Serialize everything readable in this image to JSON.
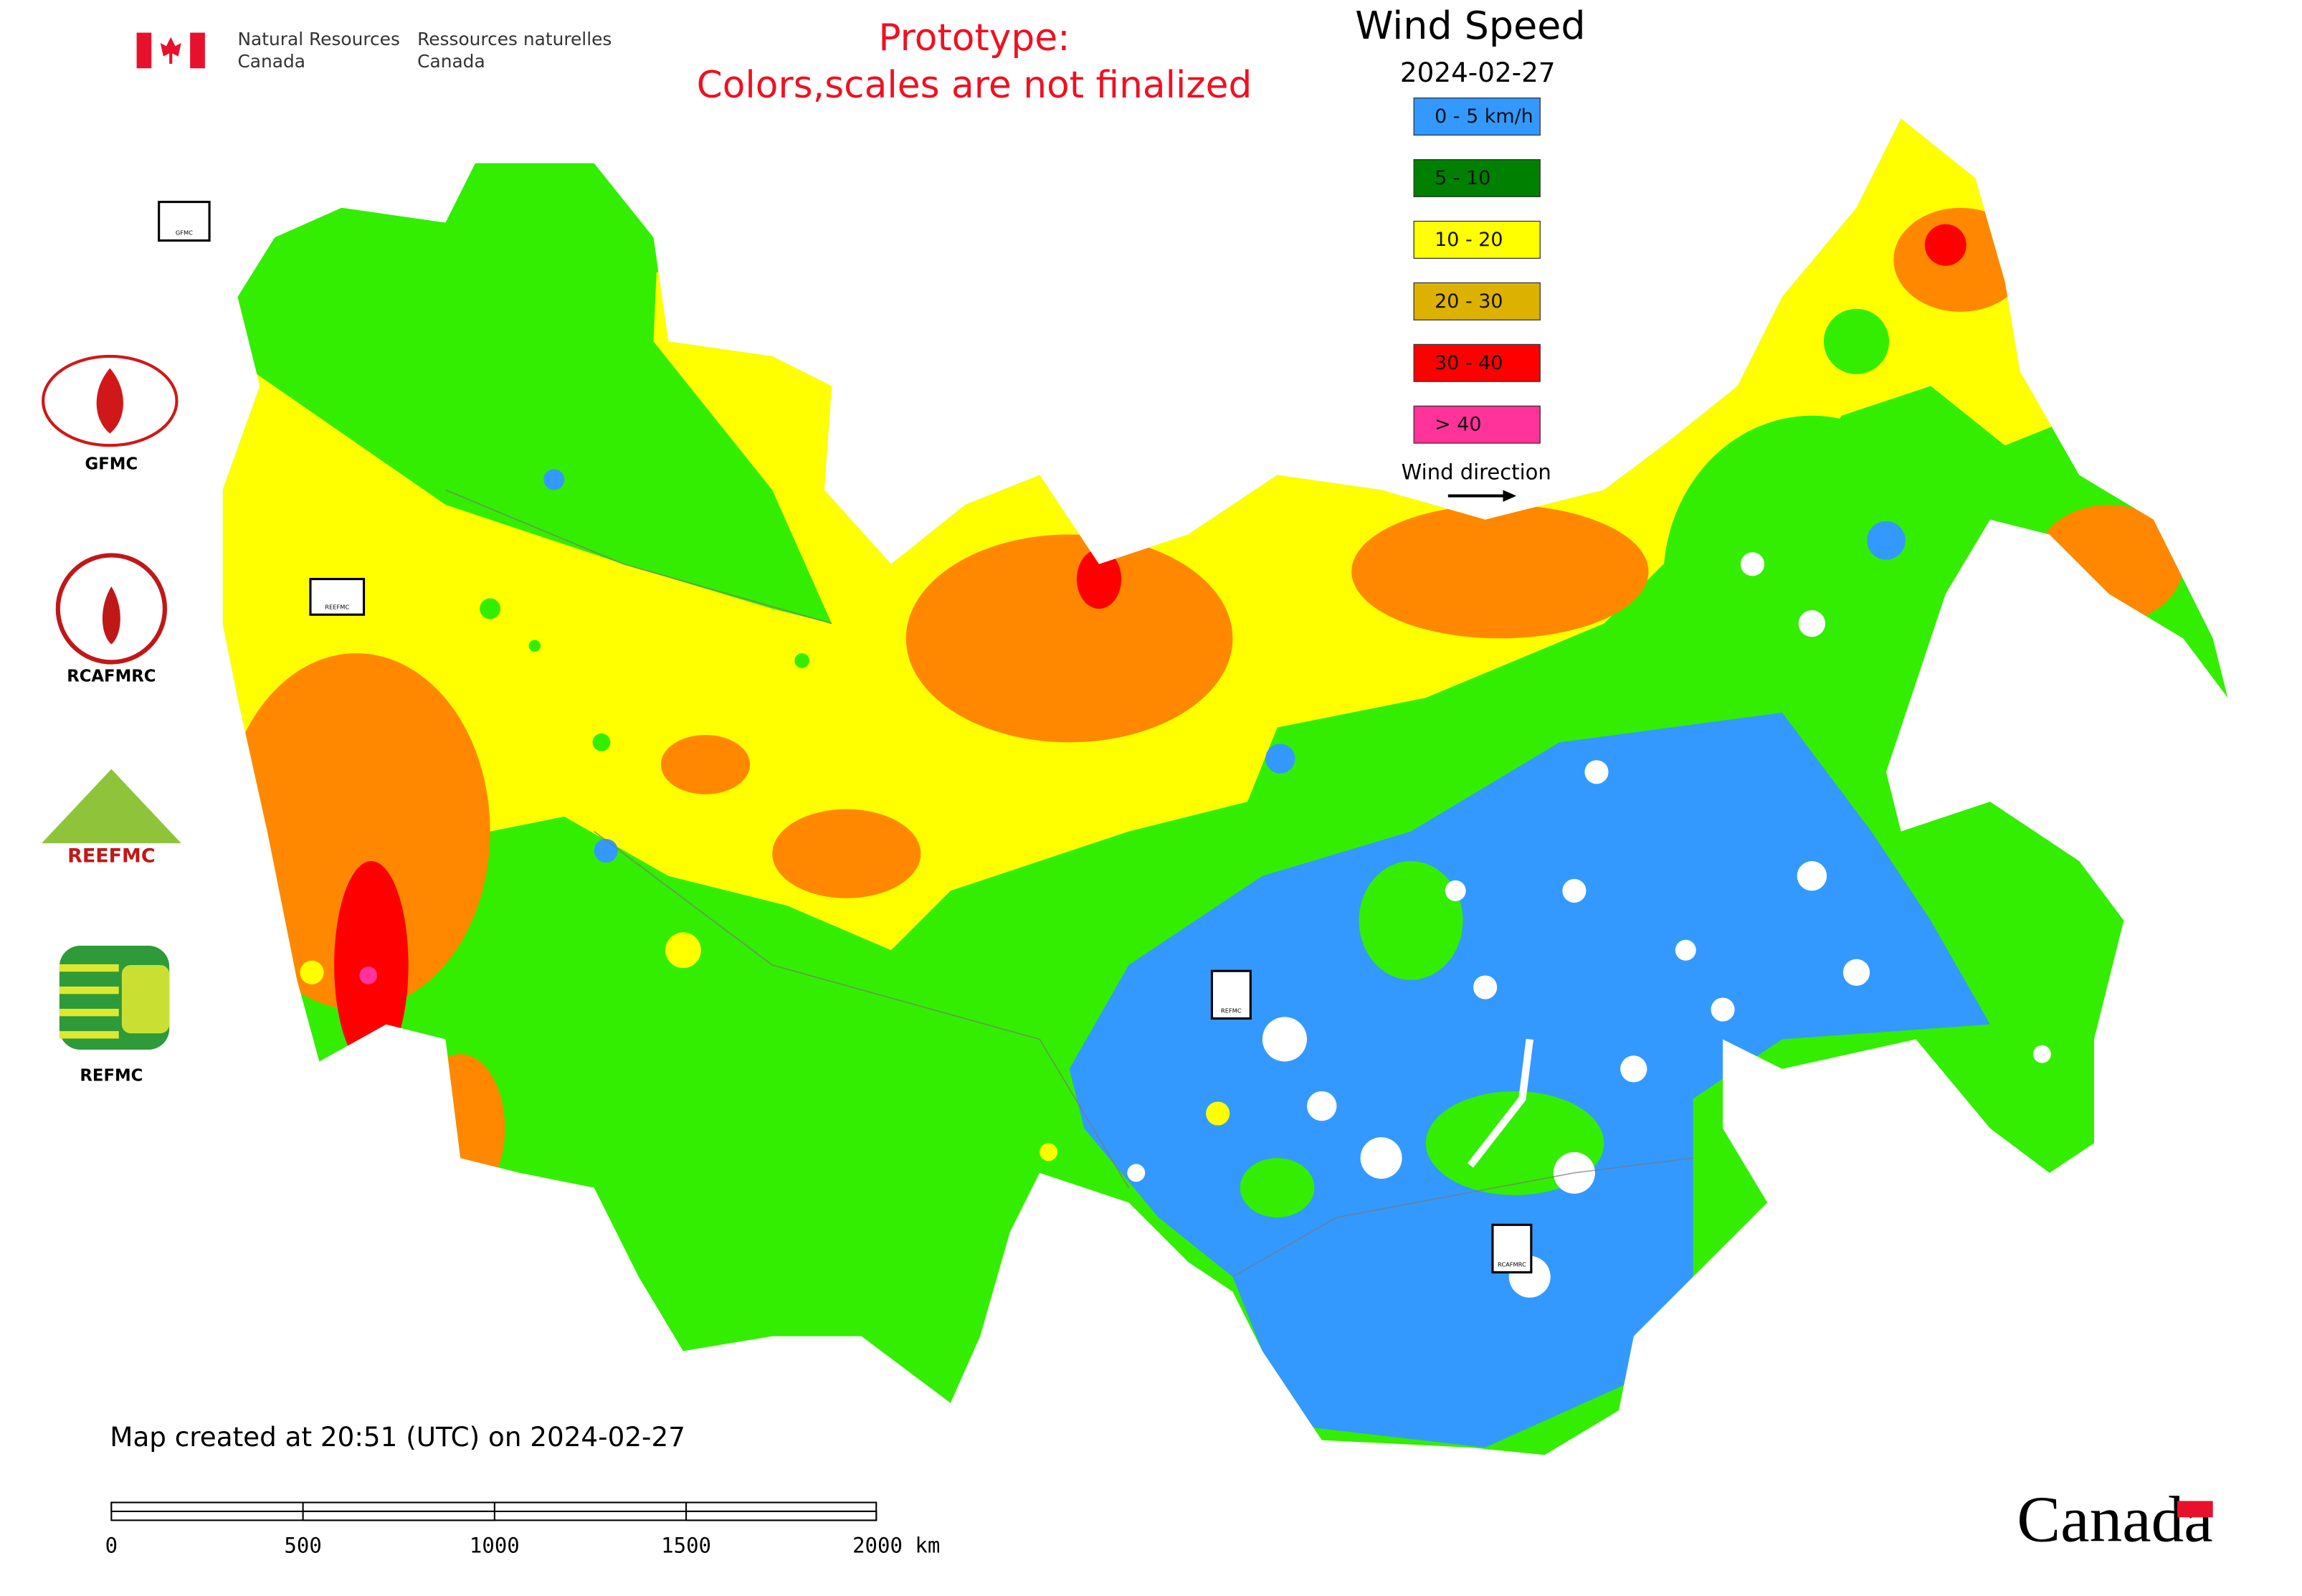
{
  "header": {
    "agency_en": [
      "Natural Resources",
      "Canada"
    ],
    "agency_fr": [
      "Ressources naturelles",
      "Canada"
    ]
  },
  "notice": [
    "Prototype:",
    "Colors,scales are not finalized"
  ],
  "legend": {
    "title": "Wind Speed",
    "date": "2024-02-27",
    "items": [
      {
        "label": "0 - 5 km/h",
        "color": "#3399ff"
      },
      {
        "label": "5 - 10",
        "color": "#008000"
      },
      {
        "label": "10 - 20",
        "color": "#ffff00"
      },
      {
        "label": "20 - 30",
        "color": "#ddb100"
      },
      {
        "label": "30 - 40",
        "color": "#ff0000"
      },
      {
        "label": "> 40",
        "color": "#ff3399"
      }
    ],
    "wind_direction": "Wind direction"
  },
  "logos": [
    "GFMC",
    "RCAFMRC",
    "REEFMC",
    "REFMC"
  ],
  "map_markers": [
    "GFMC",
    "REEFMC",
    "REFMC",
    "RCAFMRC"
  ],
  "footer": {
    "created": "Map created at 20:51 (UTC) on 2024-02-27"
  },
  "scale_bar": {
    "labels": [
      "0",
      "500",
      "1000",
      "1500",
      "2000 km"
    ]
  },
  "wordmark": "Canada"
}
